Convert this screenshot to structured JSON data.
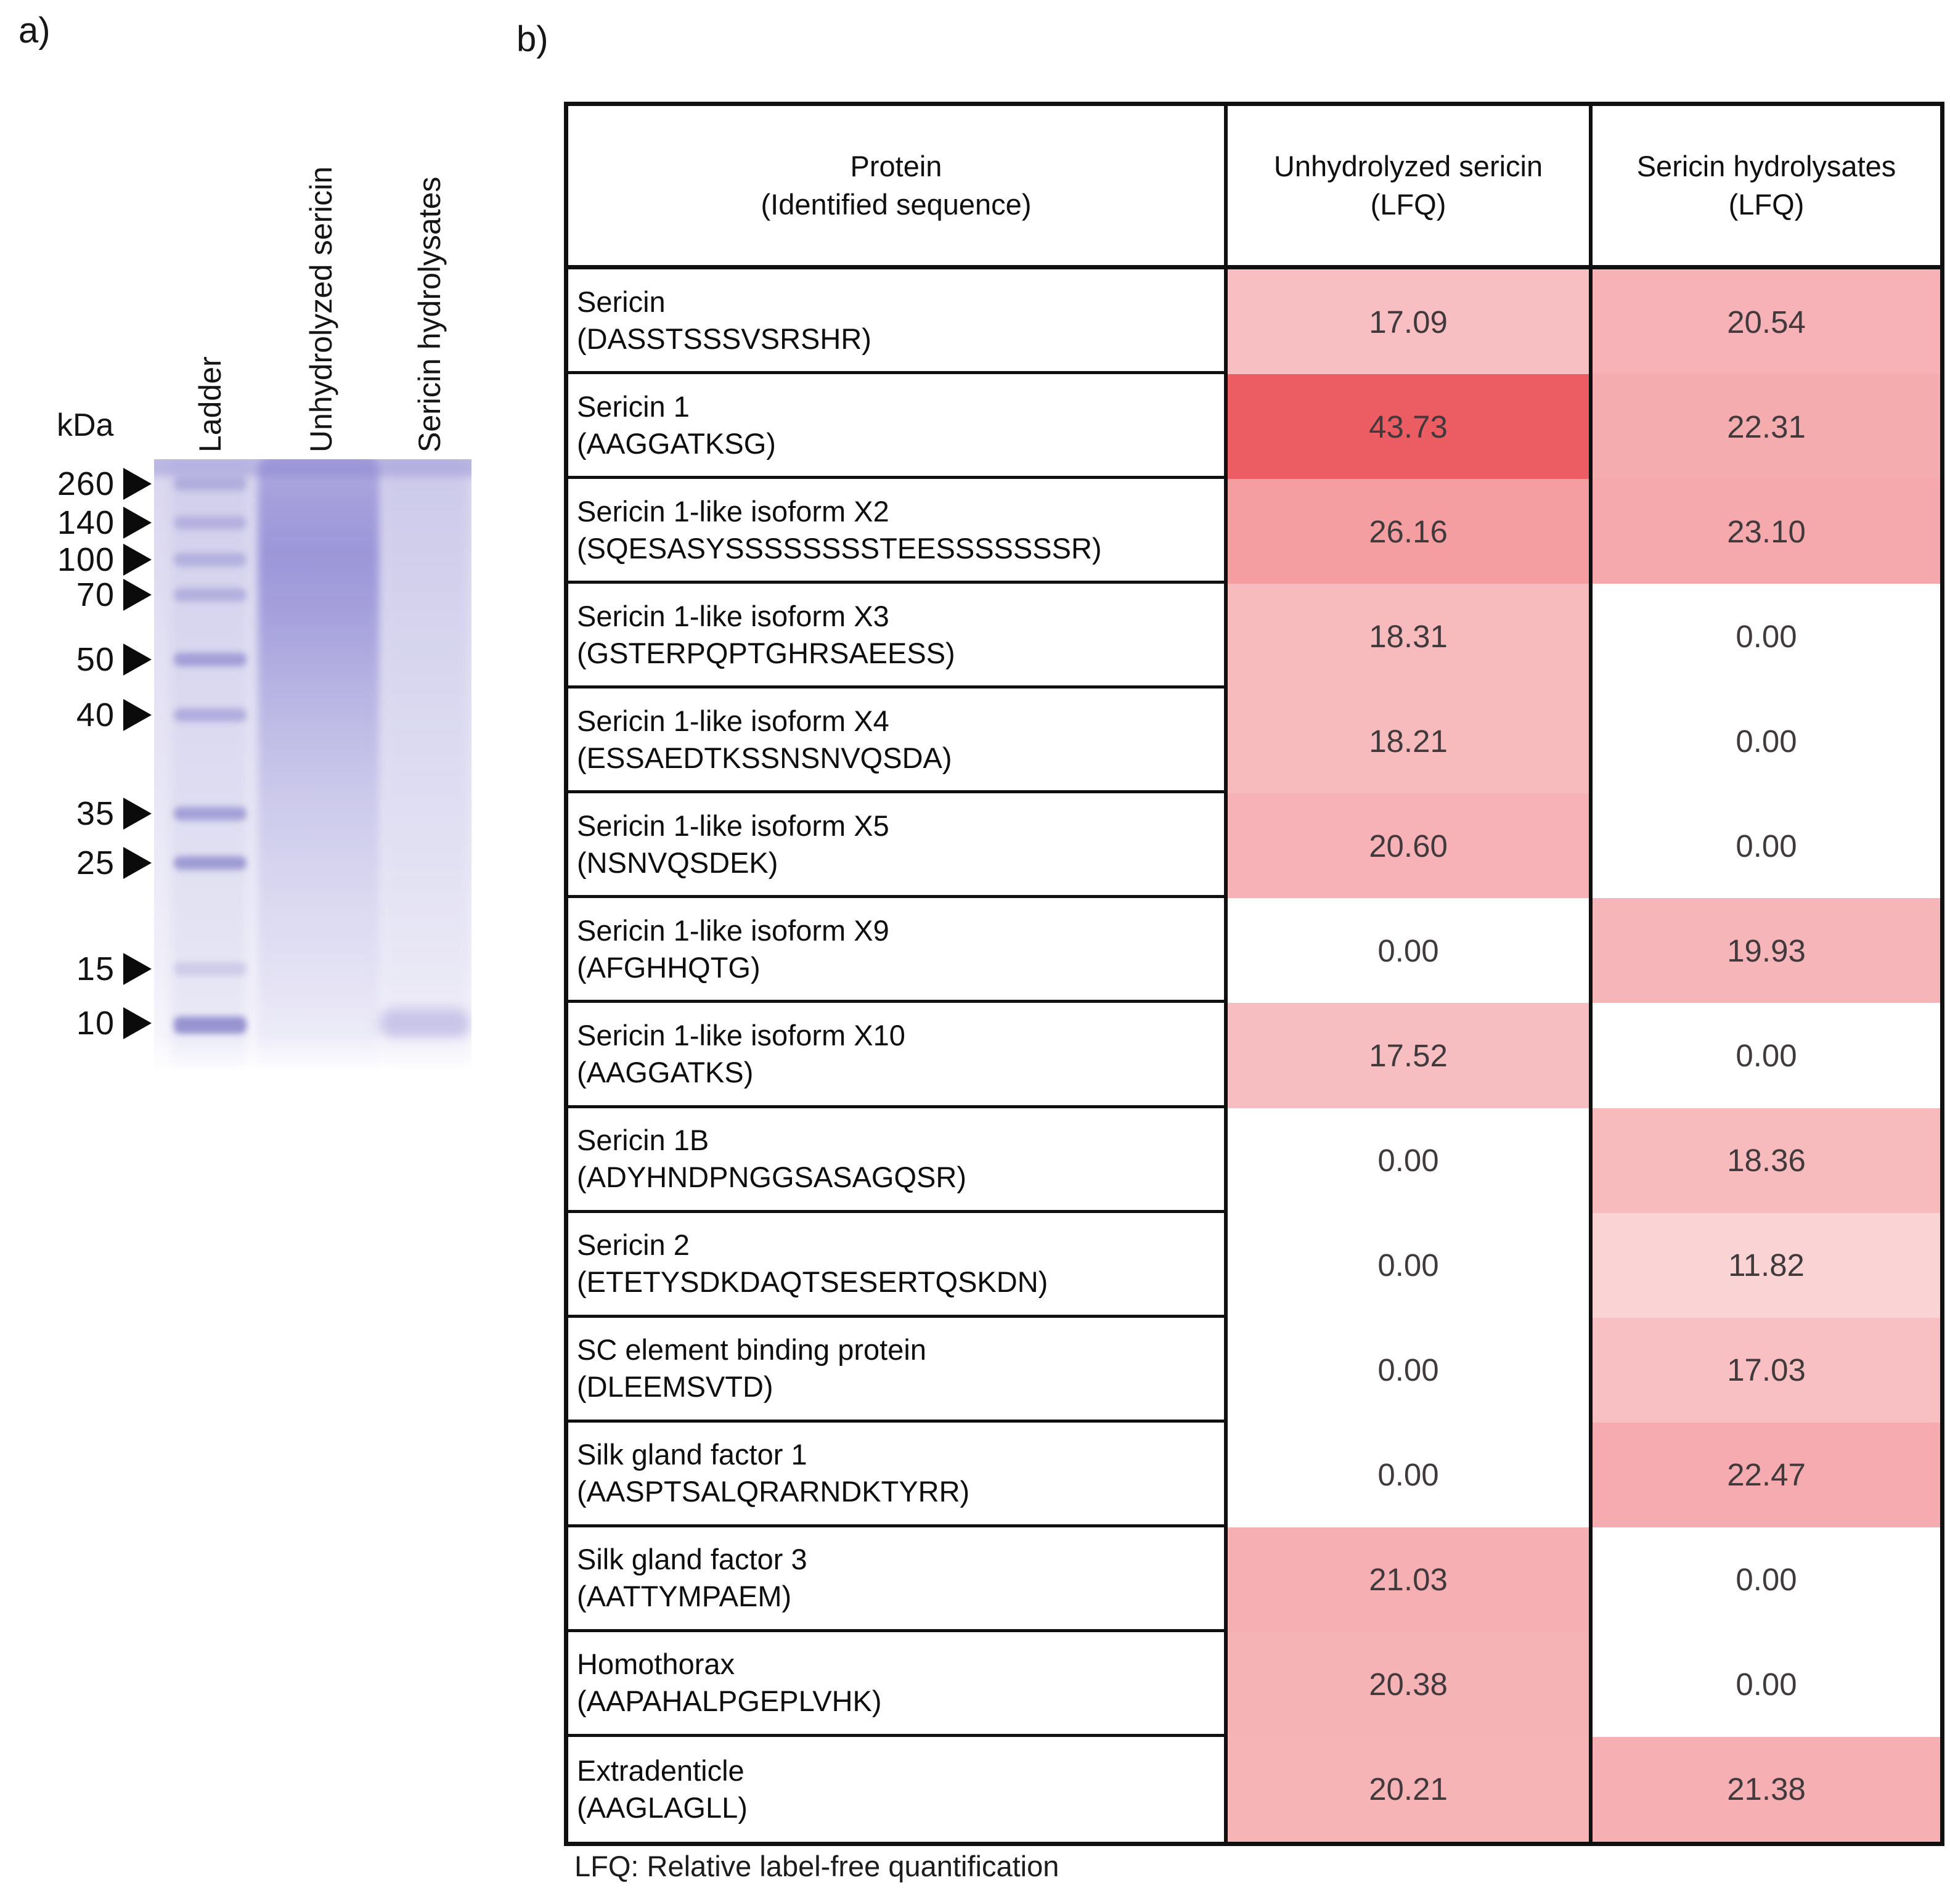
{
  "figure": {
    "panel_a_label": "a)",
    "panel_b_label": "b)"
  },
  "gel": {
    "kda_label": "kDa",
    "lane_labels": [
      "Ladder",
      "Unhydrolyzed sericin",
      "Sericin hydrolysates"
    ],
    "markers": [
      "260",
      "140",
      "100",
      "70",
      "50",
      "40",
      "35",
      "25",
      "15",
      "10"
    ],
    "gel_tint_color": "#dcd9f0",
    "band_color": "#6862be"
  },
  "table": {
    "headers": [
      {
        "line1": "Protein",
        "line2": "(Identified sequence)"
      },
      {
        "line1": "Unhydrolyzed sericin",
        "line2": "(LFQ)"
      },
      {
        "line1": "Sericin hydrolysates",
        "line2": "(LFQ)"
      }
    ],
    "heat_rgb": [
      236,
      92,
      99
    ],
    "heat_max": 43.73,
    "rows": [
      {
        "protein": "Sericin",
        "sequence": "(DASSTSSSVSRSHR)",
        "lfq_unhydrolyzed": "17.09",
        "lfq_hydrolysates": "20.54"
      },
      {
        "protein": "Sericin 1",
        "sequence": "(AAGGATKSG)",
        "lfq_unhydrolyzed": "43.73",
        "lfq_hydrolysates": "22.31"
      },
      {
        "protein": "Sericin 1-like isoform X2",
        "sequence": "(SQESASYSSSSSSSSTEESSSSSSSR)",
        "lfq_unhydrolyzed": "26.16",
        "lfq_hydrolysates": "23.10"
      },
      {
        "protein": "Sericin 1-like isoform X3",
        "sequence": "(GSTERPQPTGHRSAEESS)",
        "lfq_unhydrolyzed": "18.31",
        "lfq_hydrolysates": "0.00"
      },
      {
        "protein": "Sericin 1-like isoform X4",
        "sequence": "(ESSAEDTKSSNSNVQSDA)",
        "lfq_unhydrolyzed": "18.21",
        "lfq_hydrolysates": "0.00"
      },
      {
        "protein": "Sericin 1-like isoform X5",
        "sequence": "(NSNVQSDEK)",
        "lfq_unhydrolyzed": "20.60",
        "lfq_hydrolysates": "0.00"
      },
      {
        "protein": "Sericin 1-like isoform X9",
        "sequence": "(AFGHHQTG)",
        "lfq_unhydrolyzed": "0.00",
        "lfq_hydrolysates": "19.93"
      },
      {
        "protein": "Sericin 1-like isoform X10",
        "sequence": "(AAGGATKS)",
        "lfq_unhydrolyzed": "17.52",
        "lfq_hydrolysates": "0.00"
      },
      {
        "protein": "Sericin 1B",
        "sequence": "(ADYHNDPNGGSASAGQSR)",
        "lfq_unhydrolyzed": "0.00",
        "lfq_hydrolysates": "18.36"
      },
      {
        "protein": "Sericin 2",
        "sequence": "(ETETYSDKDAQTSESERTQSKDN)",
        "lfq_unhydrolyzed": "0.00",
        "lfq_hydrolysates": "11.82"
      },
      {
        "protein": "SC element binding protein",
        "sequence": "(DLEEMSVTD)",
        "lfq_unhydrolyzed": "0.00",
        "lfq_hydrolysates": "17.03"
      },
      {
        "protein": "Silk gland factor 1",
        "sequence": "(AASPTSALQRARNDKTYRR)",
        "lfq_unhydrolyzed": "0.00",
        "lfq_hydrolysates": "22.47"
      },
      {
        "protein": "Silk gland factor 3",
        "sequence": "(AATTYMPAEM)",
        "lfq_unhydrolyzed": "21.03",
        "lfq_hydrolysates": "0.00"
      },
      {
        "protein": "Homothorax",
        "sequence": "(AAPAHALPGEPLVHK)",
        "lfq_unhydrolyzed": "20.38",
        "lfq_hydrolysates": "0.00"
      },
      {
        "protein": "Extradenticle",
        "sequence": "(AAGLAGLL)",
        "lfq_unhydrolyzed": "20.21",
        "lfq_hydrolysates": "21.38"
      }
    ],
    "footnote": "LFQ: Relative label-free quantification"
  }
}
